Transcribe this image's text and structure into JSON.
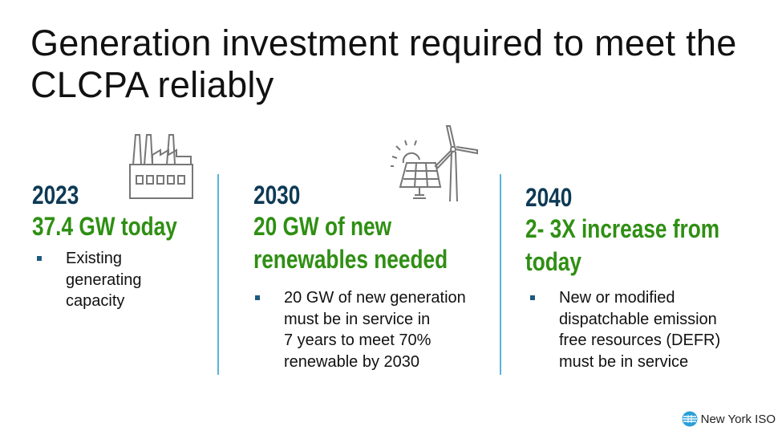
{
  "title": "Generation investment required to meet the CLCPA reliably",
  "columns": [
    {
      "year": "2023",
      "headline_lines": [
        "37.4 GW today"
      ],
      "bullet": [
        "Existing",
        "generating",
        "capacity"
      ],
      "icon": "factory-icon"
    },
    {
      "year": "2030",
      "headline_lines": [
        "20 GW of new",
        "renewables needed"
      ],
      "bullet": [
        "20 GW of new generation",
        "must be in service in",
        "7 years to meet 70%",
        "renewable by 2030"
      ],
      "icon": "solar-wind-icon"
    },
    {
      "year": "2040",
      "headline_lines": [
        "2- 3X increase from",
        "today"
      ],
      "bullet": [
        "New or modified",
        "dispatchable emission",
        "free resources (DEFR)",
        "must be in service"
      ]
    }
  ],
  "logo": {
    "text": "New York ISO"
  },
  "colors": {
    "navy": "#0e3a55",
    "green": "#2f8f13",
    "divider": "#5ab4dc"
  }
}
